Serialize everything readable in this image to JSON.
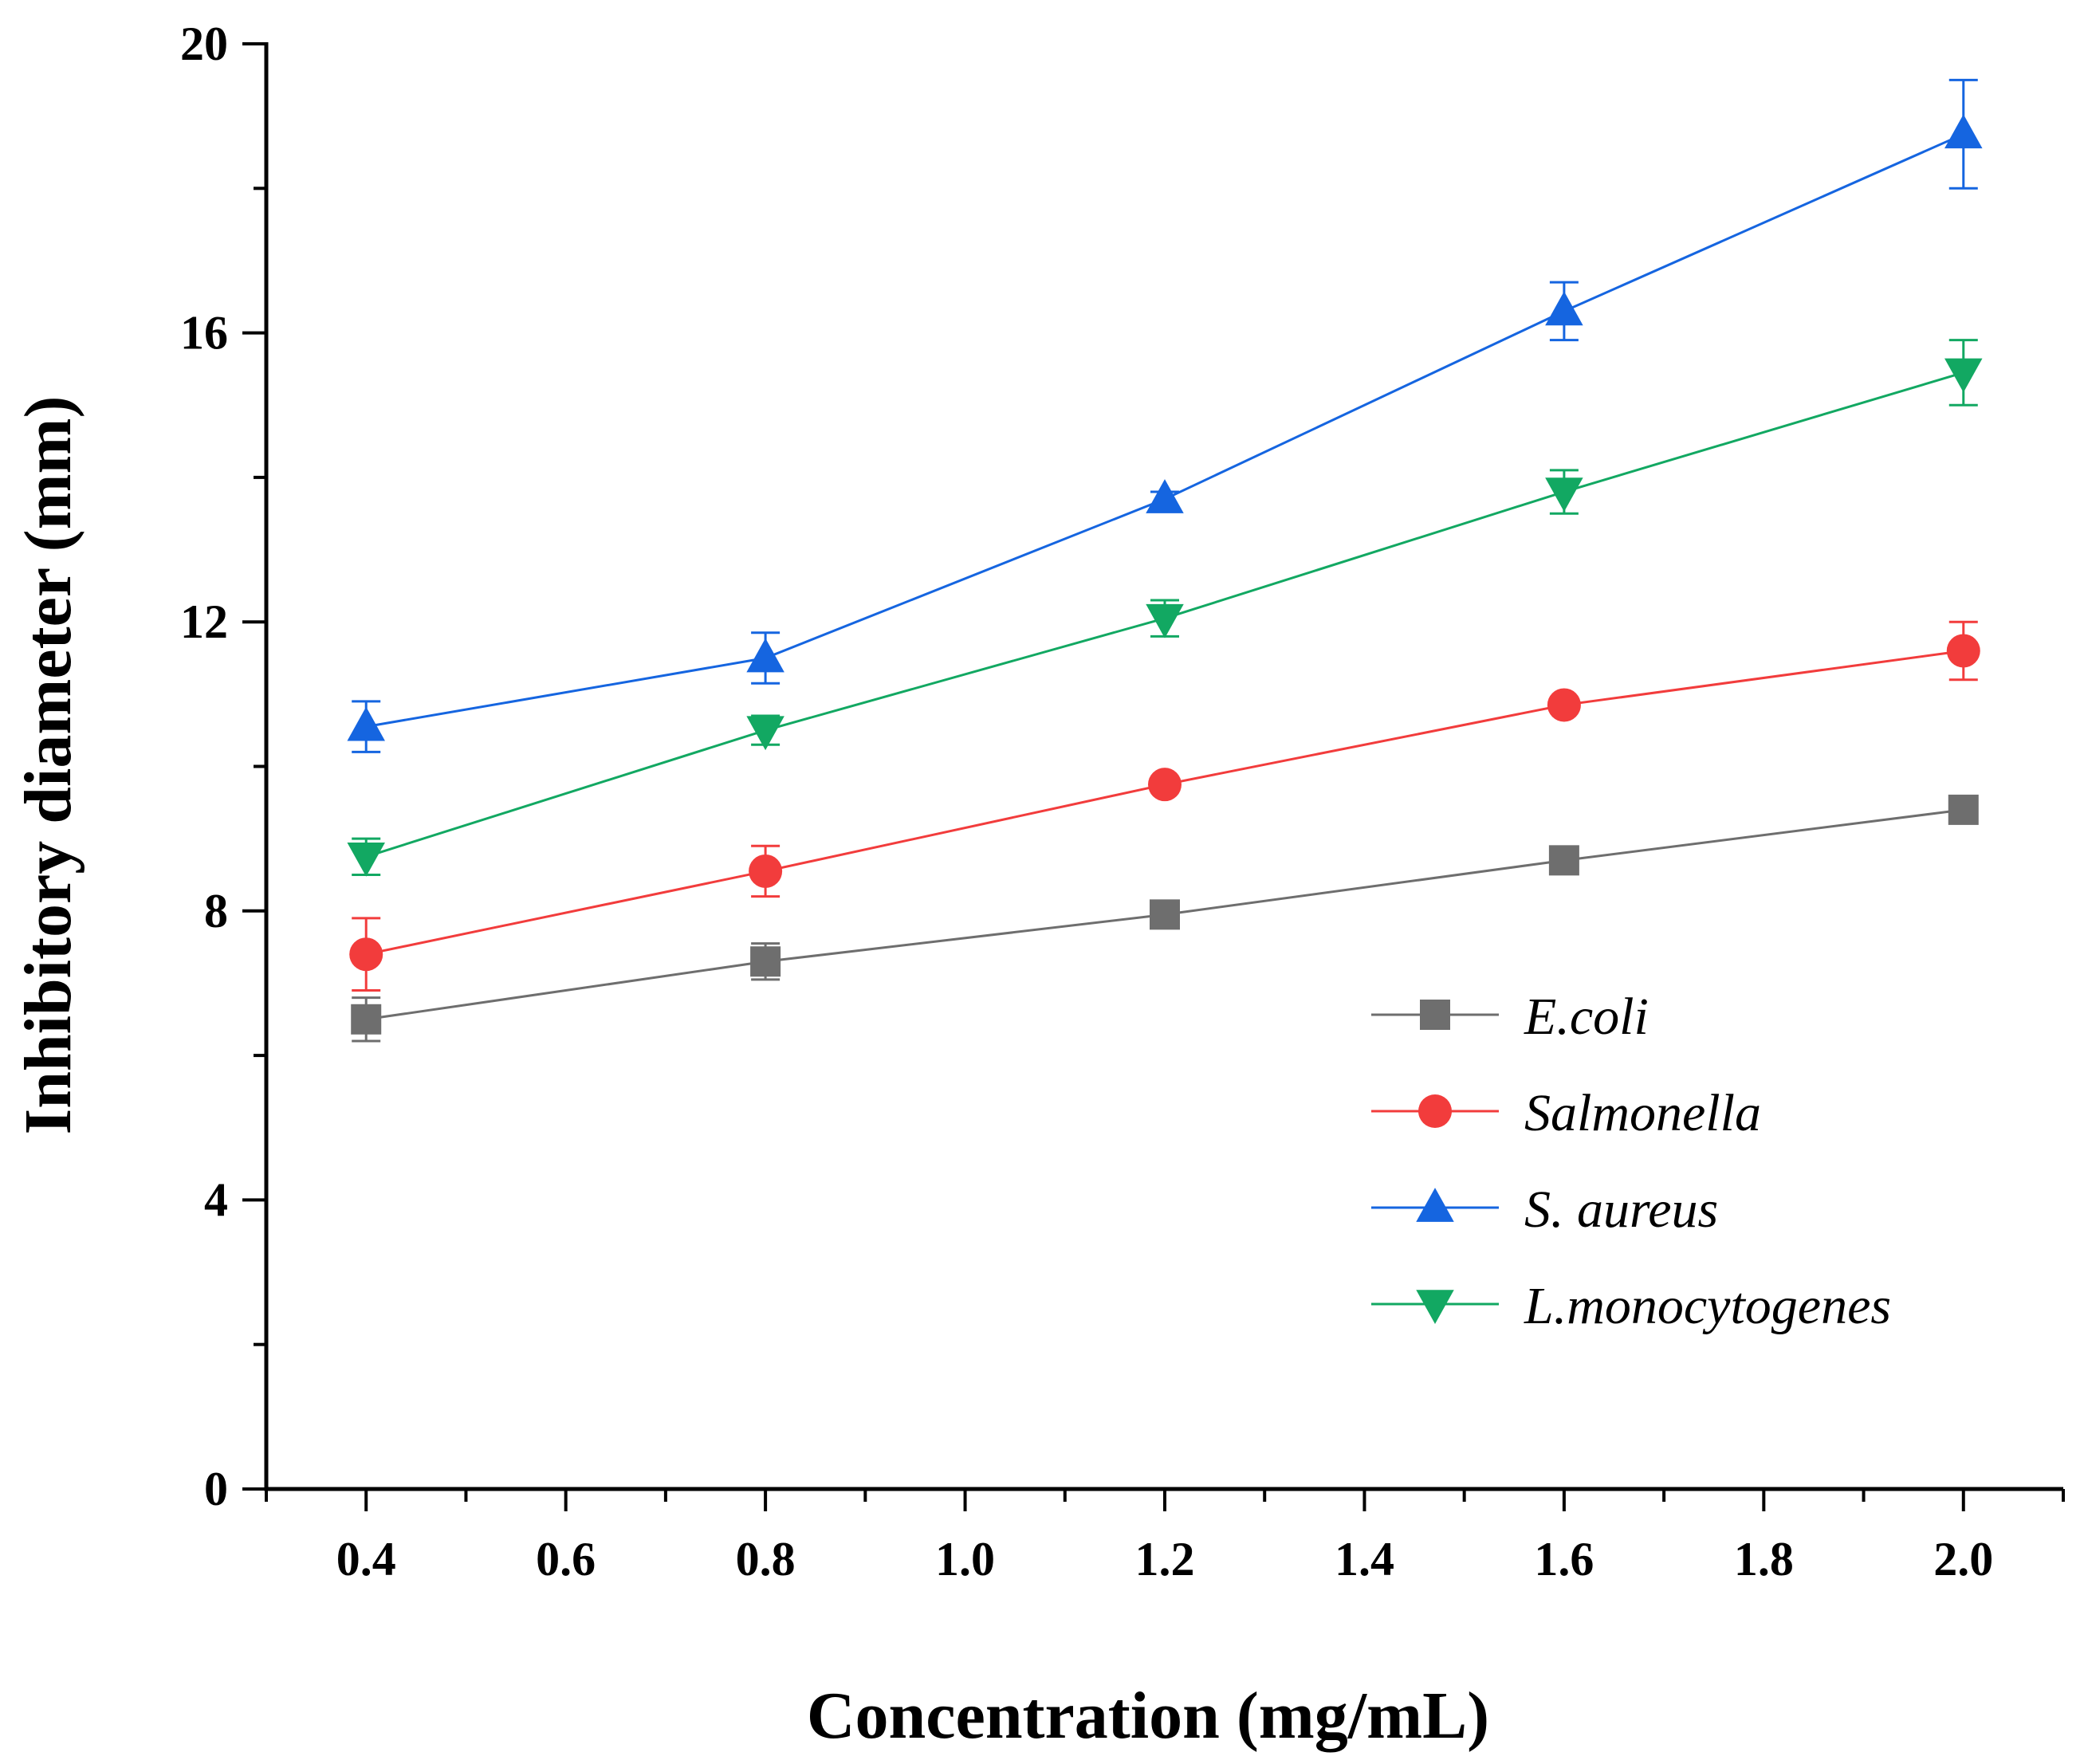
{
  "chart_data": {
    "type": "line",
    "title": "",
    "xlabel": "Concentration (mg/mL)",
    "ylabel": "Inhibitory diameter (mm)",
    "x": [
      0.4,
      0.8,
      1.2,
      1.6,
      2.0
    ],
    "xlim": [
      0.3,
      2.1
    ],
    "ylim": [
      0,
      20
    ],
    "xticks": [
      0.4,
      0.6,
      0.8,
      1.0,
      1.2,
      1.4,
      1.6,
      1.8,
      2.0
    ],
    "xtick_labels": [
      "0.4",
      "0.6",
      "0.8",
      "1.0",
      "1.2",
      "1.4",
      "1.6",
      "1.8",
      "2.0"
    ],
    "yticks": [
      0,
      4,
      8,
      12,
      16,
      20
    ],
    "ytick_labels": [
      "0",
      "4",
      "8",
      "12",
      "16",
      "20"
    ],
    "grid": false,
    "legend_position": "right-middle",
    "series": [
      {
        "name": "E.coli",
        "color": "#6e6e6e",
        "marker": "square",
        "values": [
          6.5,
          7.3,
          7.95,
          8.7,
          9.4
        ],
        "errors": [
          0.3,
          0.25,
          0.15,
          0.1,
          0.1
        ]
      },
      {
        "name": "Salmonella",
        "color": "#f23c3c",
        "marker": "circle",
        "values": [
          7.4,
          8.55,
          9.75,
          10.85,
          11.6
        ],
        "errors": [
          0.5,
          0.35,
          0.1,
          0.1,
          0.4
        ]
      },
      {
        "name": "S. aureus",
        "color": "#1565e0",
        "marker": "triangle-up",
        "values": [
          10.55,
          11.5,
          13.7,
          16.3,
          18.75
        ],
        "errors": [
          0.35,
          0.35,
          0.1,
          0.4,
          0.75
        ]
      },
      {
        "name": "L.monocytogenes",
        "color": "#12a862",
        "marker": "triangle-down",
        "values": [
          8.75,
          10.5,
          12.05,
          13.8,
          15.45
        ],
        "errors": [
          0.25,
          0.2,
          0.25,
          0.3,
          0.45
        ]
      }
    ]
  }
}
